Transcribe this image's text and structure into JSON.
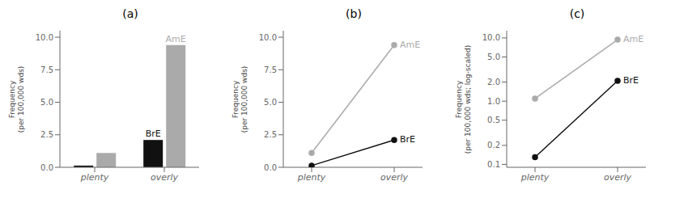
{
  "chart_data": [
    {
      "type": "bar",
      "title": "(a)",
      "ylabel": "Frequency\n(per 100,000 wds)",
      "categories": [
        "plenty",
        "overly"
      ],
      "series": [
        {
          "name": "BrE",
          "color": "#111111",
          "values": [
            0.13,
            2.1
          ]
        },
        {
          "name": "AmE",
          "color": "#aaaaaa",
          "values": [
            1.1,
            9.4
          ]
        }
      ],
      "ylim": [
        0,
        10.5
      ],
      "yticks": [
        {
          "value": 0,
          "label": "0.0"
        },
        2.5,
        {
          "value": 5,
          "label": "5.0"
        },
        7.5,
        {
          "value": 10,
          "label": "10.0"
        }
      ],
      "grid": false
    },
    {
      "type": "line",
      "title": "(b)",
      "ylabel": "Frequency\n(per 100,000 wds)",
      "categories": [
        "plenty",
        "overly"
      ],
      "series": [
        {
          "name": "BrE",
          "color": "#111111",
          "marker": "circle",
          "values": [
            0.13,
            2.1
          ]
        },
        {
          "name": "AmE",
          "color": "#aaaaaa",
          "marker": "circle",
          "values": [
            1.1,
            9.4
          ]
        }
      ],
      "ylim": [
        0,
        10.5
      ],
      "yticks": [
        {
          "value": 0,
          "label": "0.0"
        },
        2.5,
        {
          "value": 5,
          "label": "5.0"
        },
        7.5,
        {
          "value": 10,
          "label": "10.0"
        }
      ],
      "grid": false
    },
    {
      "type": "line",
      "title": "(c)",
      "ylabel": "Frequency\n(per 100,000 wds; log-scaled)",
      "categories": [
        "plenty",
        "overly"
      ],
      "series": [
        {
          "name": "BrE",
          "color": "#111111",
          "marker": "circle",
          "values": [
            0.13,
            2.1
          ]
        },
        {
          "name": "AmE",
          "color": "#aaaaaa",
          "marker": "circle",
          "values": [
            1.1,
            9.4
          ]
        }
      ],
      "log": "y",
      "ylim": [
        0.09,
        13
      ],
      "yticks": [
        0.1,
        0.2,
        0.5,
        {
          "value": 1,
          "label": "1.0"
        },
        {
          "value": 2,
          "label": "2.0"
        },
        {
          "value": 5,
          "label": "5.0"
        },
        {
          "value": 10,
          "label": "10.0"
        }
      ],
      "grid": false
    }
  ]
}
